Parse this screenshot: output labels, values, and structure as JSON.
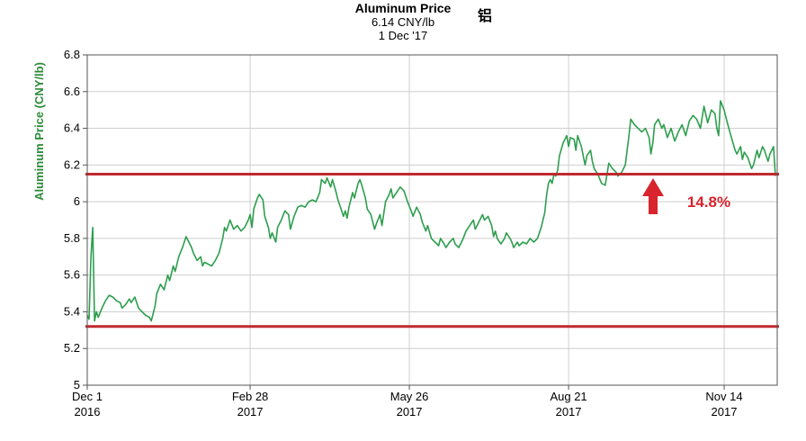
{
  "chart_data": {
    "type": "line",
    "title": "Aluminum Price",
    "subtitle_price": "6.14 CNY/lb",
    "subtitle_date": "1 Dec '17",
    "title_suffix": "铝",
    "ylabel": "Aluminum Price (CNY/lb)",
    "xlabel": "",
    "ylim": [
      5.0,
      6.8
    ],
    "yticks": [
      "5",
      "5.2",
      "5.4",
      "5.6",
      "5.8",
      "6",
      "6.2",
      "6.4",
      "6.6",
      "6.8"
    ],
    "xlim": [
      0,
      370
    ],
    "xticks": [
      {
        "x": 0,
        "line1": "Dec 1",
        "line2": "2016"
      },
      {
        "x": 89,
        "line1": "Feb 28",
        "line2": "2017"
      },
      {
        "x": 176,
        "line1": "May 26",
        "line2": "2017"
      },
      {
        "x": 263,
        "line1": "Aug 21",
        "line2": "2017"
      },
      {
        "x": 348,
        "line1": "Nov 14",
        "line2": "2017"
      }
    ],
    "grid": true,
    "line_color": "#2e9e4e",
    "reference_lines": [
      {
        "y": 6.15,
        "color": "#c0282e"
      },
      {
        "y": 5.32,
        "color": "#c0282e"
      }
    ],
    "annotation": {
      "text": "14.8%",
      "color": "#d9232d"
    },
    "series": [
      {
        "values": [
          [
            0,
            5.38
          ],
          [
            1,
            5.36
          ],
          [
            2,
            5.7
          ],
          [
            3,
            5.86
          ],
          [
            4,
            5.35
          ],
          [
            5,
            5.4
          ],
          [
            6,
            5.37
          ],
          [
            8,
            5.42
          ],
          [
            10,
            5.46
          ],
          [
            12,
            5.49
          ],
          [
            14,
            5.48
          ],
          [
            16,
            5.46
          ],
          [
            18,
            5.45
          ],
          [
            19,
            5.42
          ],
          [
            21,
            5.44
          ],
          [
            23,
            5.47
          ],
          [
            24,
            5.45
          ],
          [
            26,
            5.48
          ],
          [
            28,
            5.42
          ],
          [
            30,
            5.4
          ],
          [
            32,
            5.38
          ],
          [
            34,
            5.37
          ],
          [
            35,
            5.35
          ],
          [
            37,
            5.43
          ],
          [
            38,
            5.5
          ],
          [
            40,
            5.55
          ],
          [
            42,
            5.52
          ],
          [
            44,
            5.6
          ],
          [
            45,
            5.57
          ],
          [
            47,
            5.65
          ],
          [
            48,
            5.62
          ],
          [
            50,
            5.7
          ],
          [
            52,
            5.75
          ],
          [
            54,
            5.81
          ],
          [
            55,
            5.79
          ],
          [
            57,
            5.75
          ],
          [
            58,
            5.72
          ],
          [
            60,
            5.68
          ],
          [
            62,
            5.7
          ],
          [
            63,
            5.65
          ],
          [
            64,
            5.67
          ],
          [
            66,
            5.66
          ],
          [
            68,
            5.65
          ],
          [
            70,
            5.68
          ],
          [
            72,
            5.72
          ],
          [
            74,
            5.8
          ],
          [
            75,
            5.86
          ],
          [
            76,
            5.84
          ],
          [
            78,
            5.9
          ],
          [
            80,
            5.85
          ],
          [
            82,
            5.87
          ],
          [
            84,
            5.84
          ],
          [
            86,
            5.86
          ],
          [
            88,
            5.9
          ],
          [
            89,
            5.93
          ],
          [
            90,
            5.86
          ],
          [
            91,
            5.96
          ],
          [
            93,
            6.02
          ],
          [
            94,
            6.04
          ],
          [
            96,
            6.01
          ],
          [
            97,
            5.92
          ],
          [
            99,
            5.86
          ],
          [
            100,
            5.8
          ],
          [
            101,
            5.83
          ],
          [
            103,
            5.78
          ],
          [
            104,
            5.86
          ],
          [
            106,
            5.9
          ],
          [
            108,
            5.95
          ],
          [
            110,
            5.93
          ],
          [
            111,
            5.85
          ],
          [
            113,
            5.92
          ],
          [
            115,
            5.97
          ],
          [
            117,
            5.98
          ],
          [
            119,
            5.97
          ],
          [
            121,
            6.0
          ],
          [
            123,
            6.01
          ],
          [
            125,
            6.0
          ],
          [
            127,
            6.05
          ],
          [
            128,
            6.12
          ],
          [
            130,
            6.1
          ],
          [
            131,
            6.13
          ],
          [
            133,
            6.08
          ],
          [
            134,
            6.12
          ],
          [
            136,
            6.05
          ],
          [
            137,
            6.01
          ],
          [
            138,
            5.98
          ],
          [
            139,
            5.95
          ],
          [
            140,
            5.92
          ],
          [
            141,
            5.95
          ],
          [
            142,
            5.91
          ],
          [
            143,
            5.97
          ],
          [
            145,
            6.05
          ],
          [
            146,
            6.02
          ],
          [
            148,
            6.1
          ],
          [
            149,
            6.12
          ],
          [
            150,
            6.09
          ],
          [
            152,
            6.02
          ],
          [
            153,
            5.96
          ],
          [
            155,
            5.93
          ],
          [
            157,
            5.85
          ],
          [
            158,
            5.88
          ],
          [
            160,
            5.93
          ],
          [
            161,
            5.87
          ],
          [
            163,
            6.0
          ],
          [
            165,
            6.04
          ],
          [
            166,
            6.07
          ],
          [
            167,
            6.02
          ],
          [
            169,
            6.05
          ],
          [
            171,
            6.08
          ],
          [
            173,
            6.06
          ],
          [
            175,
            6.0
          ],
          [
            177,
            5.95
          ],
          [
            178,
            5.92
          ],
          [
            180,
            5.97
          ],
          [
            182,
            5.93
          ],
          [
            183,
            5.89
          ],
          [
            185,
            5.84
          ],
          [
            186,
            5.87
          ],
          [
            188,
            5.8
          ],
          [
            190,
            5.78
          ],
          [
            192,
            5.76
          ],
          [
            193,
            5.8
          ],
          [
            195,
            5.77
          ],
          [
            196,
            5.75
          ],
          [
            198,
            5.78
          ],
          [
            200,
            5.8
          ],
          [
            201,
            5.77
          ],
          [
            203,
            5.75
          ],
          [
            205,
            5.79
          ],
          [
            207,
            5.84
          ],
          [
            209,
            5.87
          ],
          [
            211,
            5.9
          ],
          [
            212,
            5.85
          ],
          [
            214,
            5.89
          ],
          [
            216,
            5.93
          ],
          [
            217,
            5.9
          ],
          [
            219,
            5.92
          ],
          [
            221,
            5.87
          ],
          [
            222,
            5.81
          ],
          [
            223,
            5.84
          ],
          [
            224,
            5.8
          ],
          [
            226,
            5.77
          ],
          [
            228,
            5.8
          ],
          [
            229,
            5.83
          ],
          [
            231,
            5.8
          ],
          [
            232,
            5.78
          ],
          [
            233,
            5.75
          ],
          [
            235,
            5.78
          ],
          [
            236,
            5.76
          ],
          [
            238,
            5.78
          ],
          [
            240,
            5.77
          ],
          [
            242,
            5.8
          ],
          [
            244,
            5.78
          ],
          [
            246,
            5.8
          ],
          [
            248,
            5.86
          ],
          [
            250,
            5.94
          ],
          [
            251,
            6.04
          ],
          [
            252,
            6.1
          ],
          [
            253,
            6.12
          ],
          [
            254,
            6.1
          ],
          [
            255,
            6.15
          ],
          [
            256,
            6.14
          ],
          [
            257,
            6.17
          ],
          [
            258,
            6.25
          ],
          [
            260,
            6.32
          ],
          [
            262,
            6.36
          ],
          [
            263,
            6.3
          ],
          [
            264,
            6.35
          ],
          [
            266,
            6.34
          ],
          [
            267,
            6.28
          ],
          [
            268,
            6.36
          ],
          [
            270,
            6.3
          ],
          [
            272,
            6.2
          ],
          [
            273,
            6.25
          ],
          [
            275,
            6.28
          ],
          [
            276,
            6.22
          ],
          [
            277,
            6.18
          ],
          [
            279,
            6.15
          ],
          [
            281,
            6.1
          ],
          [
            283,
            6.09
          ],
          [
            284,
            6.15
          ],
          [
            285,
            6.21
          ],
          [
            287,
            6.18
          ],
          [
            289,
            6.16
          ],
          [
            290,
            6.14
          ],
          [
            292,
            6.16
          ],
          [
            294,
            6.2
          ],
          [
            296,
            6.36
          ],
          [
            297,
            6.45
          ],
          [
            299,
            6.42
          ],
          [
            301,
            6.4
          ],
          [
            303,
            6.38
          ],
          [
            305,
            6.4
          ],
          [
            307,
            6.35
          ],
          [
            308,
            6.26
          ],
          [
            309,
            6.32
          ],
          [
            310,
            6.42
          ],
          [
            312,
            6.45
          ],
          [
            314,
            6.4
          ],
          [
            315,
            6.42
          ],
          [
            317,
            6.35
          ],
          [
            319,
            6.4
          ],
          [
            321,
            6.33
          ],
          [
            323,
            6.38
          ],
          [
            325,
            6.42
          ],
          [
            327,
            6.36
          ],
          [
            329,
            6.44
          ],
          [
            331,
            6.47
          ],
          [
            333,
            6.45
          ],
          [
            335,
            6.4
          ],
          [
            337,
            6.52
          ],
          [
            339,
            6.43
          ],
          [
            341,
            6.5
          ],
          [
            343,
            6.48
          ],
          [
            344,
            6.4
          ],
          [
            345,
            6.36
          ],
          [
            346,
            6.55
          ],
          [
            348,
            6.5
          ],
          [
            349,
            6.46
          ],
          [
            350,
            6.42
          ],
          [
            352,
            6.35
          ],
          [
            354,
            6.28
          ],
          [
            355,
            6.26
          ],
          [
            357,
            6.3
          ],
          [
            358,
            6.23
          ],
          [
            359,
            6.27
          ],
          [
            361,
            6.24
          ],
          [
            363,
            6.18
          ],
          [
            364,
            6.2
          ],
          [
            366,
            6.28
          ],
          [
            367,
            6.24
          ],
          [
            369,
            6.3
          ],
          [
            370,
            6.28
          ],
          [
            372,
            6.22
          ],
          [
            373,
            6.26
          ],
          [
            375,
            6.3
          ],
          [
            376,
            6.14
          ]
        ]
      }
    ]
  }
}
